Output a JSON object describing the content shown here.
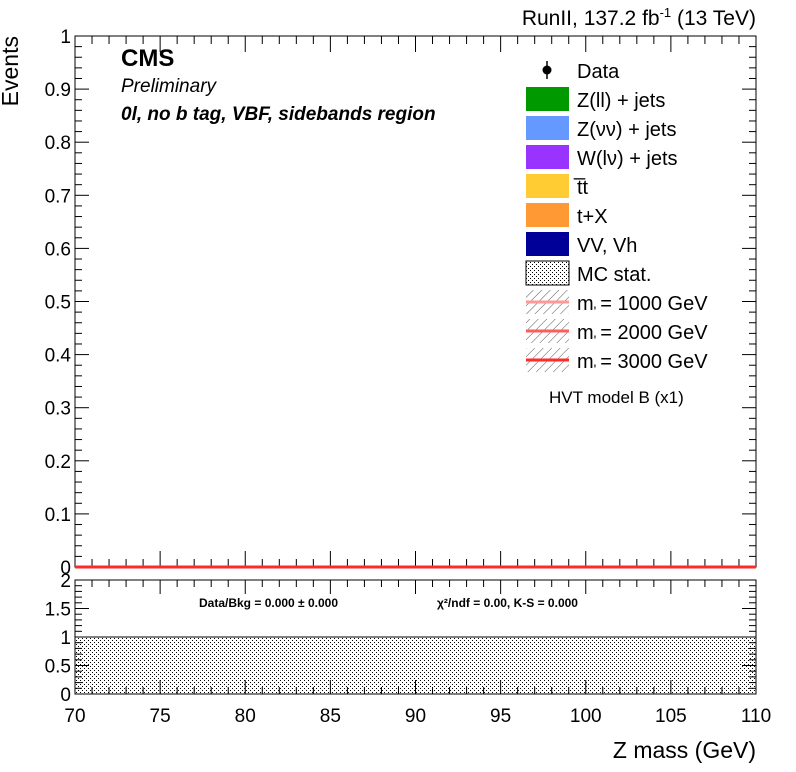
{
  "header": {
    "lumi_text": "RunII, 137.2 fb",
    "lumi_exp": "-1",
    "energy_text": "(13 TeV)"
  },
  "labels": {
    "experiment": "CMS",
    "status": "Preliminary",
    "region": "0l, no b tag, VBF, sidebands region",
    "model": "HVT model B (x1)"
  },
  "ratio_text": {
    "data_bkg": "Data/Bkg = 0.000 ± 0.000",
    "chi2": "χ²/ndf = 0.00,   K-S = 0.000"
  },
  "legend": [
    {
      "label": "Data",
      "kind": "marker",
      "color": "#000000"
    },
    {
      "label": "Z(ll) + jets",
      "kind": "fill",
      "color": "#009900"
    },
    {
      "label": "Z(νν) + jets",
      "kind": "fill",
      "color": "#6699ff"
    },
    {
      "label": "W(lν) + jets",
      "kind": "fill",
      "color": "#9933ff"
    },
    {
      "label": "t̅t",
      "kind": "fill",
      "color": "#ffcc33"
    },
    {
      "label": "t+X",
      "kind": "fill",
      "color": "#ff9933"
    },
    {
      "label": "VV, Vh",
      "kind": "fill",
      "color": "#000099"
    },
    {
      "label": "MC stat.",
      "kind": "hatch",
      "color": "#000000"
    },
    {
      "label": "m_Z' = 1000 GeV",
      "kind": "signal",
      "color": "#ff9999"
    },
    {
      "label": "m_Z' = 2000 GeV",
      "kind": "signal",
      "color": "#ff5c5c"
    },
    {
      "label": "m_Z' = 3000 GeV",
      "kind": "signal",
      "color": "#ff2a2a"
    }
  ],
  "chart_data": [
    {
      "type": "line",
      "title": "",
      "xlabel": "",
      "ylabel": "Events",
      "xlim": [
        70,
        110
      ],
      "ylim": [
        0,
        1
      ],
      "y_ticks": [
        "0",
        "0.1",
        "0.2",
        "0.3",
        "0.4",
        "0.5",
        "0.6",
        "0.7",
        "0.8",
        "0.9",
        "1"
      ],
      "grid": false,
      "legend_position": "top-right",
      "series": [
        {
          "name": "m_Z' = 3000 GeV",
          "x": [
            70,
            110
          ],
          "values": [
            0,
            0
          ]
        }
      ]
    },
    {
      "type": "area",
      "title": "",
      "xlabel": "Z mass (GeV)",
      "ylabel": "",
      "xlim": [
        70,
        110
      ],
      "ylim": [
        0,
        2
      ],
      "x_ticks": [
        "70",
        "75",
        "80",
        "85",
        "90",
        "95",
        "100",
        "105",
        "110"
      ],
      "y_ticks": [
        "0",
        "0.5",
        "1",
        "1.5",
        "2"
      ],
      "series": [
        {
          "name": "MC stat.",
          "x": [
            70,
            110
          ],
          "values": [
            1,
            1
          ]
        }
      ]
    }
  ]
}
